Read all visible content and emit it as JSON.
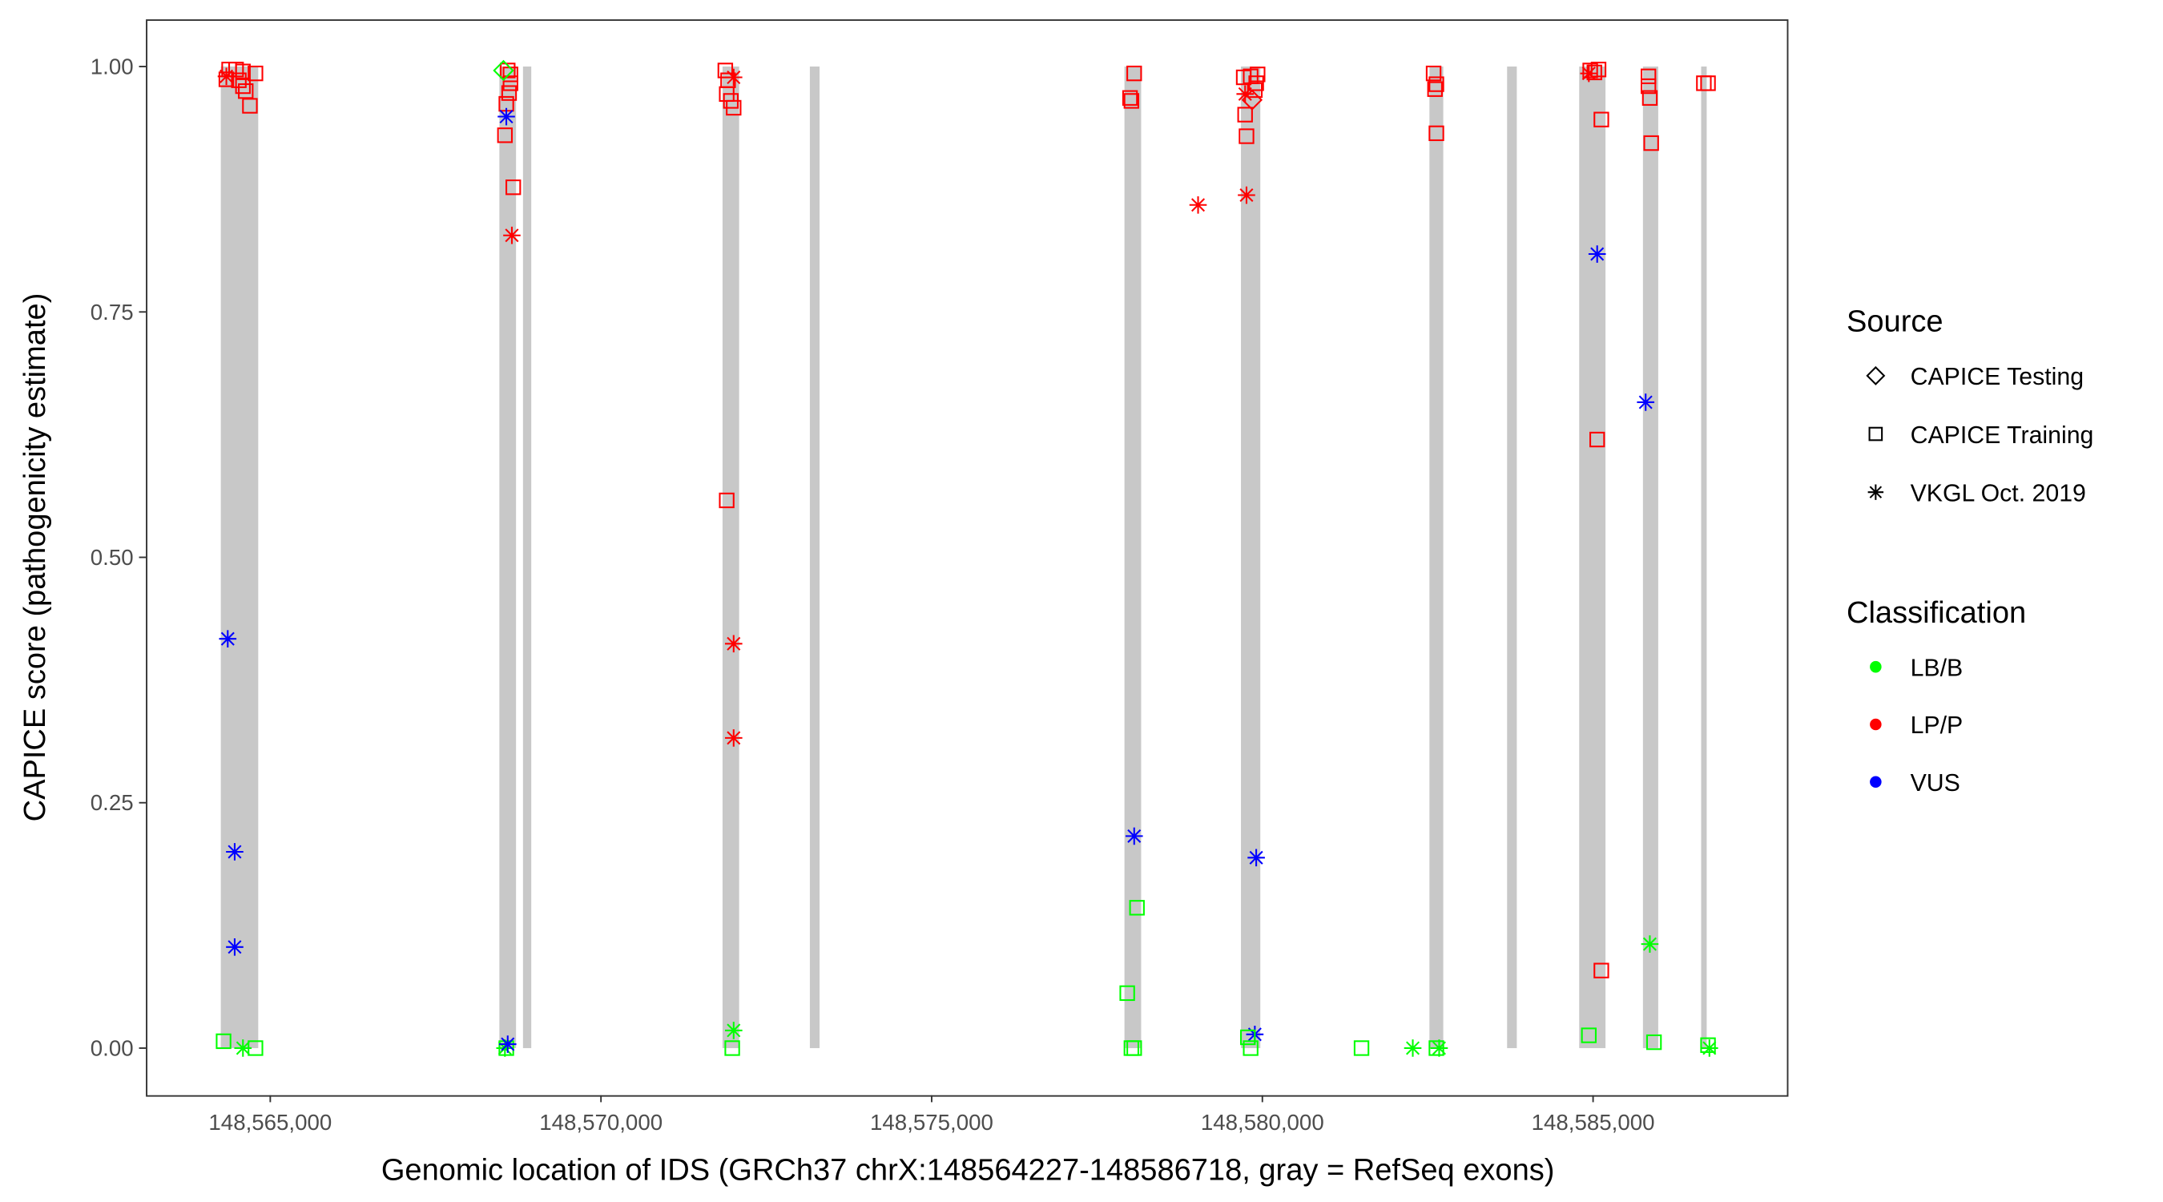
{
  "chart_data": {
    "type": "scatter",
    "title": "",
    "xlabel": "Genomic location of IDS (GRCh37 chrX:148564227-148586718, gray = RefSeq exons)",
    "ylabel": "CAPICE score (pathogenicity estimate)",
    "xlim": [
      148563450,
      148588250
    ],
    "ylim": [
      -0.045,
      1.045
    ],
    "x_ticks": [
      148565000,
      148570000,
      148575000,
      148580000,
      148585000
    ],
    "x_tick_labels": [
      "148,565,000",
      "148,570,000",
      "148,575,000",
      "148,580,000",
      "148,585,000"
    ],
    "y_ticks": [
      0,
      0.25,
      0.5,
      0.75,
      1
    ],
    "y_tick_labels": [
      "0.00",
      "0.25",
      "0.50",
      "0.75",
      "1.00"
    ],
    "grid": false,
    "exon_color": "#c8c8c8",
    "exons": [
      [
        148564252,
        148564818
      ],
      [
        148568464,
        148568716
      ],
      [
        148568821,
        148568946
      ],
      [
        148571838,
        148572089
      ],
      [
        148573158,
        148573305
      ],
      [
        148577915,
        148578167
      ],
      [
        148579676,
        148579969
      ],
      [
        148582526,
        148582735
      ],
      [
        148583700,
        148583847
      ],
      [
        148584790,
        148585188
      ],
      [
        148585754,
        148585985
      ],
      [
        148586634,
        148586718
      ]
    ],
    "legend": {
      "placement": "right",
      "source": {
        "title": "Source",
        "entries": [
          {
            "key": "testing",
            "label": "CAPICE Testing",
            "shape": "diamond"
          },
          {
            "key": "training",
            "label": "CAPICE Training",
            "shape": "square"
          },
          {
            "key": "vkgl",
            "label": "VKGL Oct. 2019",
            "shape": "asterisk"
          }
        ]
      },
      "classification": {
        "title": "Classification",
        "entries": [
          {
            "key": "LB/B",
            "label": "LB/B",
            "color": "#00ff00"
          },
          {
            "key": "LP/P",
            "label": "LP/P",
            "color": "#ff0000"
          },
          {
            "key": "VUS",
            "label": "VUS",
            "color": "#0000ff"
          }
        ]
      }
    },
    "points_columns": [
      "position",
      "score",
      "source",
      "classification"
    ],
    "points": [
      [
        148564378,
        0.997,
        "training",
        "LP/P"
      ],
      [
        148564483,
        0.997,
        "training",
        "LP/P"
      ],
      [
        148564587,
        0.995,
        "training",
        "LP/P"
      ],
      [
        148564336,
        0.987,
        "training",
        "LP/P"
      ],
      [
        148564525,
        0.986,
        "training",
        "LP/P"
      ],
      [
        148564587,
        0.98,
        "training",
        "LP/P"
      ],
      [
        148564629,
        0.975,
        "training",
        "LP/P"
      ],
      [
        148564692,
        0.96,
        "training",
        "LP/P"
      ],
      [
        148564776,
        0.993,
        "training",
        "LP/P"
      ],
      [
        148564336,
        0.99,
        "vkgl",
        "LP/P"
      ],
      [
        148564294,
        0.007,
        "training",
        "LB/B"
      ],
      [
        148564587,
        0.0,
        "vkgl",
        "LB/B"
      ],
      [
        148564776,
        0.0,
        "training",
        "LB/B"
      ],
      [
        148564357,
        0.417,
        "vkgl",
        "VUS"
      ],
      [
        148564462,
        0.2,
        "vkgl",
        "VUS"
      ],
      [
        148564462,
        0.103,
        "vkgl",
        "VUS"
      ],
      [
        148568590,
        0.996,
        "training",
        "LP/P"
      ],
      [
        148568632,
        0.992,
        "training",
        "LP/P"
      ],
      [
        148568632,
        0.983,
        "training",
        "LP/P"
      ],
      [
        148568611,
        0.973,
        "training",
        "LP/P"
      ],
      [
        148568569,
        0.962,
        "training",
        "LP/P"
      ],
      [
        148568548,
        0.93,
        "training",
        "LP/P"
      ],
      [
        148568674,
        0.877,
        "training",
        "LP/P"
      ],
      [
        148568526,
        0.996,
        "testing",
        "LB/B"
      ],
      [
        148568569,
        0.949,
        "vkgl",
        "VUS"
      ],
      [
        148568653,
        0.828,
        "vkgl",
        "LP/P"
      ],
      [
        148568548,
        0.0,
        "vkgl",
        "LB/B"
      ],
      [
        148568569,
        0.0,
        "training",
        "LB/B"
      ],
      [
        148568590,
        0.004,
        "vkgl",
        "VUS"
      ],
      [
        148571880,
        0.996,
        "training",
        "LP/P"
      ],
      [
        148571922,
        0.986,
        "training",
        "LP/P"
      ],
      [
        148571901,
        0.972,
        "training",
        "LP/P"
      ],
      [
        148571964,
        0.965,
        "training",
        "LP/P"
      ],
      [
        148572006,
        0.958,
        "training",
        "LP/P"
      ],
      [
        148572006,
        0.989,
        "vkgl",
        "LP/P"
      ],
      [
        148571901,
        0.558,
        "training",
        "LP/P"
      ],
      [
        148572006,
        0.412,
        "vkgl",
        "LP/P"
      ],
      [
        148572006,
        0.316,
        "vkgl",
        "LP/P"
      ],
      [
        148572006,
        0.018,
        "vkgl",
        "LB/B"
      ],
      [
        148571985,
        0.0,
        "training",
        "LB/B"
      ],
      [
        148578062,
        0.993,
        "training",
        "LP/P"
      ],
      [
        148577999,
        0.968,
        "training",
        "LP/P"
      ],
      [
        148578020,
        0.965,
        "training",
        "LP/P"
      ],
      [
        148578062,
        0.216,
        "vkgl",
        "VUS"
      ],
      [
        148578104,
        0.143,
        "training",
        "LB/B"
      ],
      [
        148577957,
        0.056,
        "training",
        "LB/B"
      ],
      [
        148578020,
        0.0,
        "training",
        "LB/B"
      ],
      [
        148578062,
        0.0,
        "training",
        "LB/B"
      ],
      [
        148579028,
        0.859,
        "vkgl",
        "LP/P"
      ],
      [
        148579718,
        0.989,
        "training",
        "LP/P"
      ],
      [
        148579823,
        0.99,
        "training",
        "LP/P"
      ],
      [
        148579928,
        0.992,
        "training",
        "LP/P"
      ],
      [
        148579739,
        0.951,
        "training",
        "LP/P"
      ],
      [
        148579760,
        0.929,
        "training",
        "LP/P"
      ],
      [
        148579907,
        0.983,
        "training",
        "LP/P"
      ],
      [
        148579886,
        0.976,
        "training",
        "LP/P"
      ],
      [
        148579739,
        0.972,
        "vkgl",
        "LP/P"
      ],
      [
        148579844,
        0.966,
        "testing",
        "LP/P"
      ],
      [
        148579760,
        0.869,
        "vkgl",
        "LP/P"
      ],
      [
        148579907,
        0.194,
        "vkgl",
        "VUS"
      ],
      [
        148579886,
        0.014,
        "vkgl",
        "VUS"
      ],
      [
        148579781,
        0.011,
        "training",
        "LB/B"
      ],
      [
        148579823,
        0.0,
        "training",
        "LB/B"
      ],
      [
        148581499,
        0.0,
        "training",
        "LB/B"
      ],
      [
        148582274,
        0.0,
        "vkgl",
        "LB/B"
      ],
      [
        148582589,
        0.993,
        "training",
        "LP/P"
      ],
      [
        148582631,
        0.982,
        "training",
        "LP/P"
      ],
      [
        148582610,
        0.977,
        "training",
        "LP/P"
      ],
      [
        148582631,
        0.932,
        "training",
        "LP/P"
      ],
      [
        148582631,
        0.0,
        "training",
        "LB/B"
      ],
      [
        148582673,
        0.0,
        "vkgl",
        "LB/B"
      ],
      [
        148584957,
        0.996,
        "training",
        "LP/P"
      ],
      [
        148585020,
        0.994,
        "training",
        "LP/P"
      ],
      [
        148585083,
        0.997,
        "training",
        "LP/P"
      ],
      [
        148584936,
        0.993,
        "vkgl",
        "LP/P"
      ],
      [
        148585125,
        0.946,
        "training",
        "LP/P"
      ],
      [
        148585062,
        0.809,
        "vkgl",
        "VUS"
      ],
      [
        148585062,
        0.62,
        "training",
        "LP/P"
      ],
      [
        148585125,
        0.079,
        "training",
        "LP/P"
      ],
      [
        148584936,
        0.013,
        "training",
        "LB/B"
      ],
      [
        148585837,
        0.99,
        "training",
        "LP/P"
      ],
      [
        148585837,
        0.98,
        "training",
        "LP/P"
      ],
      [
        148585858,
        0.968,
        "training",
        "LP/P"
      ],
      [
        148585879,
        0.922,
        "training",
        "LP/P"
      ],
      [
        148585795,
        0.658,
        "vkgl",
        "VUS"
      ],
      [
        148585858,
        0.106,
        "vkgl",
        "LB/B"
      ],
      [
        148585921,
        0.006,
        "training",
        "LB/B"
      ],
      [
        148586675,
        0.983,
        "training",
        "LP/P"
      ],
      [
        148586738,
        0.983,
        "training",
        "LP/P"
      ],
      [
        148586759,
        0.0,
        "vkgl",
        "LB/B"
      ],
      [
        148586738,
        0.003,
        "training",
        "LB/B"
      ]
    ]
  }
}
